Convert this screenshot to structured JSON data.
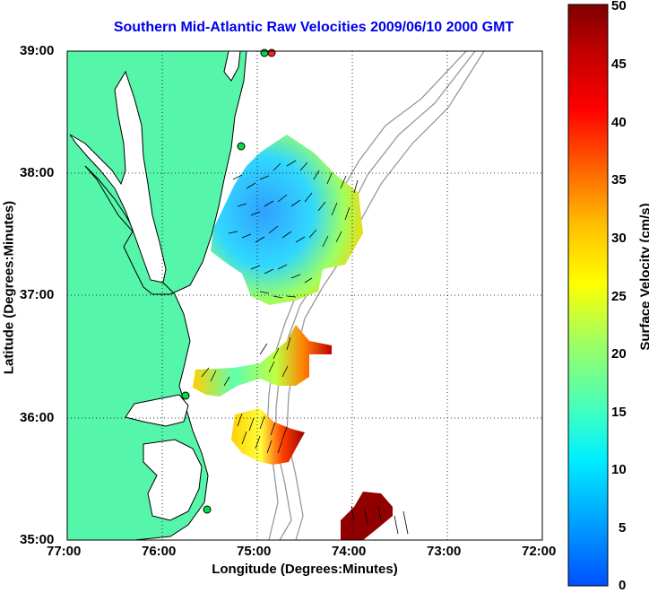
{
  "title": "Southern Mid-Atlantic Raw Velocities 2009/06/10 2000 GMT",
  "axes": {
    "xlabel": "Longitude (Degrees:Minutes)",
    "ylabel": "Latitude (Degrees:Minutes)",
    "xticks": [
      "77:00",
      "76:00",
      "75:00",
      "74:00",
      "73:00",
      "72:00"
    ],
    "yticks": [
      "39:00",
      "38:00",
      "37:00",
      "36:00",
      "35:00"
    ]
  },
  "colorbar": {
    "label": "Surface Velocity (cm/s)",
    "ticks": [
      "50",
      "45",
      "40",
      "35",
      "30",
      "25",
      "20",
      "15",
      "10",
      "5",
      "0"
    ],
    "range": [
      0,
      50
    ]
  },
  "colors": {
    "title": "#0000ee",
    "land": "#55f5aa",
    "water": "#ffffff",
    "bathymetry": "#999999",
    "station": "#00dd44"
  }
}
